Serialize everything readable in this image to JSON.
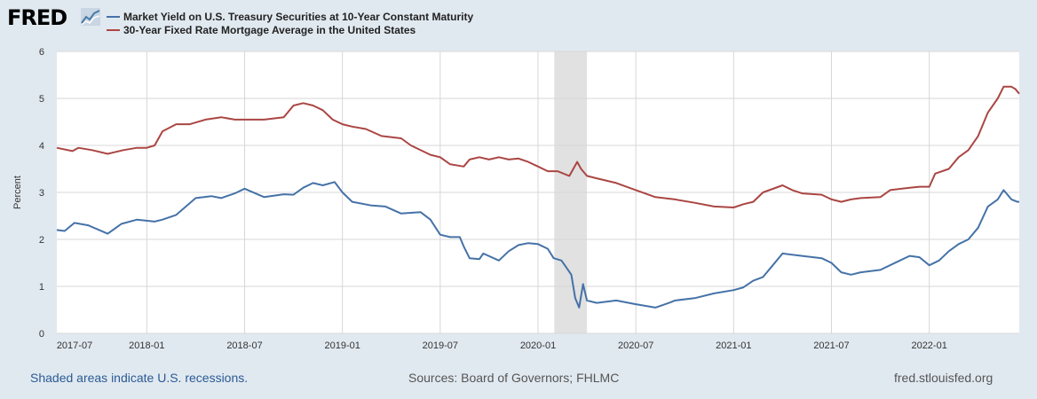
{
  "header": {
    "logo_text": "FRED",
    "logo_icon": "trend-chart-icon"
  },
  "colors": {
    "treasury": "#4572a7",
    "mortgage": "#aa4643",
    "recession": "#e1e1e1",
    "grid": "#d7d7d7",
    "background": "#e1e9f0",
    "plot_bg": "#ffffff"
  },
  "footer": {
    "recession_note": "Shaded areas indicate U.S. recessions.",
    "sources": "Sources: Board of Governors; FHLMC",
    "site": "fred.stlouisfed.org"
  },
  "chart_data": {
    "type": "line",
    "title": "",
    "xlabel": "",
    "ylabel": "Percent",
    "ylim": [
      0,
      6
    ],
    "yticks": [
      0,
      1,
      2,
      3,
      4,
      5,
      6
    ],
    "xlim": [
      2017.54,
      2022.46
    ],
    "xticks": [
      {
        "label": "2017-07",
        "x": 2017.5
      },
      {
        "label": "2018-01",
        "x": 2018.0
      },
      {
        "label": "2018-07",
        "x": 2018.5
      },
      {
        "label": "2019-01",
        "x": 2019.0
      },
      {
        "label": "2019-07",
        "x": 2019.5
      },
      {
        "label": "2020-01",
        "x": 2020.0
      },
      {
        "label": "2020-07",
        "x": 2020.5
      },
      {
        "label": "2021-01",
        "x": 2021.0
      },
      {
        "label": "2021-07",
        "x": 2021.5
      },
      {
        "label": "2022-01",
        "x": 2022.0
      }
    ],
    "grid": true,
    "legend_position": "top-left",
    "recessions": [
      {
        "start": 2020.083,
        "end": 2020.25
      }
    ],
    "series": [
      {
        "name": "Market Yield on U.S. Treasury Securities at 10-Year Constant Maturity",
        "key": "treasury",
        "x": [
          2017.54,
          2017.58,
          2017.63,
          2017.7,
          2017.8,
          2017.87,
          2017.95,
          2018.04,
          2018.08,
          2018.15,
          2018.25,
          2018.33,
          2018.38,
          2018.45,
          2018.5,
          2018.6,
          2018.7,
          2018.75,
          2018.8,
          2018.85,
          2018.9,
          2018.96,
          2019.0,
          2019.05,
          2019.15,
          2019.22,
          2019.3,
          2019.4,
          2019.45,
          2019.5,
          2019.55,
          2019.6,
          2019.62,
          2019.65,
          2019.7,
          2019.72,
          2019.8,
          2019.85,
          2019.9,
          2019.95,
          2020.0,
          2020.05,
          2020.08,
          2020.12,
          2020.17,
          2020.19,
          2020.21,
          2020.23,
          2020.25,
          2020.3,
          2020.4,
          2020.5,
          2020.6,
          2020.67,
          2020.7,
          2020.8,
          2020.9,
          2021.0,
          2021.05,
          2021.1,
          2021.15,
          2021.2,
          2021.25,
          2021.35,
          2021.45,
          2021.5,
          2021.55,
          2021.6,
          2021.65,
          2021.75,
          2021.85,
          2021.9,
          2021.95,
          2022.0,
          2022.05,
          2022.1,
          2022.15,
          2022.2,
          2022.25,
          2022.3,
          2022.35,
          2022.38,
          2022.4,
          2022.42,
          2022.45,
          2022.46
        ],
        "values": [
          2.2,
          2.18,
          2.35,
          2.3,
          2.12,
          2.33,
          2.42,
          2.38,
          2.42,
          2.52,
          2.88,
          2.92,
          2.88,
          2.98,
          3.08,
          2.9,
          2.96,
          2.95,
          3.1,
          3.2,
          3.15,
          3.22,
          3.0,
          2.8,
          2.72,
          2.7,
          2.55,
          2.58,
          2.42,
          2.1,
          2.05,
          2.05,
          1.85,
          1.6,
          1.58,
          1.7,
          1.55,
          1.75,
          1.88,
          1.92,
          1.9,
          1.8,
          1.6,
          1.55,
          1.25,
          0.75,
          0.55,
          1.05,
          0.7,
          0.65,
          0.7,
          0.62,
          0.55,
          0.65,
          0.7,
          0.75,
          0.85,
          0.92,
          0.98,
          1.12,
          1.2,
          1.45,
          1.7,
          1.65,
          1.6,
          1.5,
          1.3,
          1.25,
          1.3,
          1.35,
          1.55,
          1.65,
          1.62,
          1.45,
          1.55,
          1.75,
          1.9,
          2.0,
          2.25,
          2.7,
          2.85,
          3.05,
          2.95,
          2.85,
          2.8,
          2.8
        ]
      },
      {
        "name": "30-Year Fixed Rate Mortgage Average in the United States",
        "key": "mortgage",
        "x": [
          2017.54,
          2017.62,
          2017.65,
          2017.72,
          2017.8,
          2017.88,
          2017.95,
          2018.0,
          2018.04,
          2018.08,
          2018.15,
          2018.22,
          2018.3,
          2018.38,
          2018.45,
          2018.5,
          2018.6,
          2018.7,
          2018.75,
          2018.8,
          2018.85,
          2018.9,
          2018.95,
          2019.0,
          2019.05,
          2019.12,
          2019.2,
          2019.3,
          2019.35,
          2019.45,
          2019.5,
          2019.55,
          2019.62,
          2019.65,
          2019.7,
          2019.75,
          2019.8,
          2019.85,
          2019.9,
          2019.95,
          2020.0,
          2020.05,
          2020.1,
          2020.16,
          2020.2,
          2020.22,
          2020.25,
          2020.3,
          2020.4,
          2020.5,
          2020.6,
          2020.7,
          2020.8,
          2020.9,
          2021.0,
          2021.05,
          2021.1,
          2021.15,
          2021.25,
          2021.3,
          2021.35,
          2021.45,
          2021.5,
          2021.55,
          2021.6,
          2021.65,
          2021.75,
          2021.8,
          2021.9,
          2021.95,
          2022.0,
          2022.03,
          2022.1,
          2022.15,
          2022.2,
          2022.25,
          2022.3,
          2022.35,
          2022.38,
          2022.42,
          2022.44,
          2022.46
        ],
        "values": [
          3.95,
          3.88,
          3.95,
          3.9,
          3.82,
          3.9,
          3.95,
          3.95,
          4.0,
          4.3,
          4.45,
          4.45,
          4.55,
          4.6,
          4.55,
          4.55,
          4.55,
          4.6,
          4.85,
          4.9,
          4.85,
          4.75,
          4.55,
          4.45,
          4.4,
          4.35,
          4.2,
          4.15,
          4.0,
          3.8,
          3.75,
          3.6,
          3.55,
          3.7,
          3.75,
          3.7,
          3.75,
          3.7,
          3.72,
          3.65,
          3.55,
          3.45,
          3.45,
          3.35,
          3.65,
          3.5,
          3.35,
          3.3,
          3.2,
          3.05,
          2.9,
          2.85,
          2.78,
          2.7,
          2.68,
          2.75,
          2.8,
          3.0,
          3.15,
          3.05,
          2.98,
          2.95,
          2.85,
          2.8,
          2.85,
          2.88,
          2.9,
          3.05,
          3.1,
          3.12,
          3.12,
          3.4,
          3.5,
          3.75,
          3.9,
          4.2,
          4.7,
          5.0,
          5.25,
          5.25,
          5.2,
          5.1
        ]
      }
    ]
  }
}
